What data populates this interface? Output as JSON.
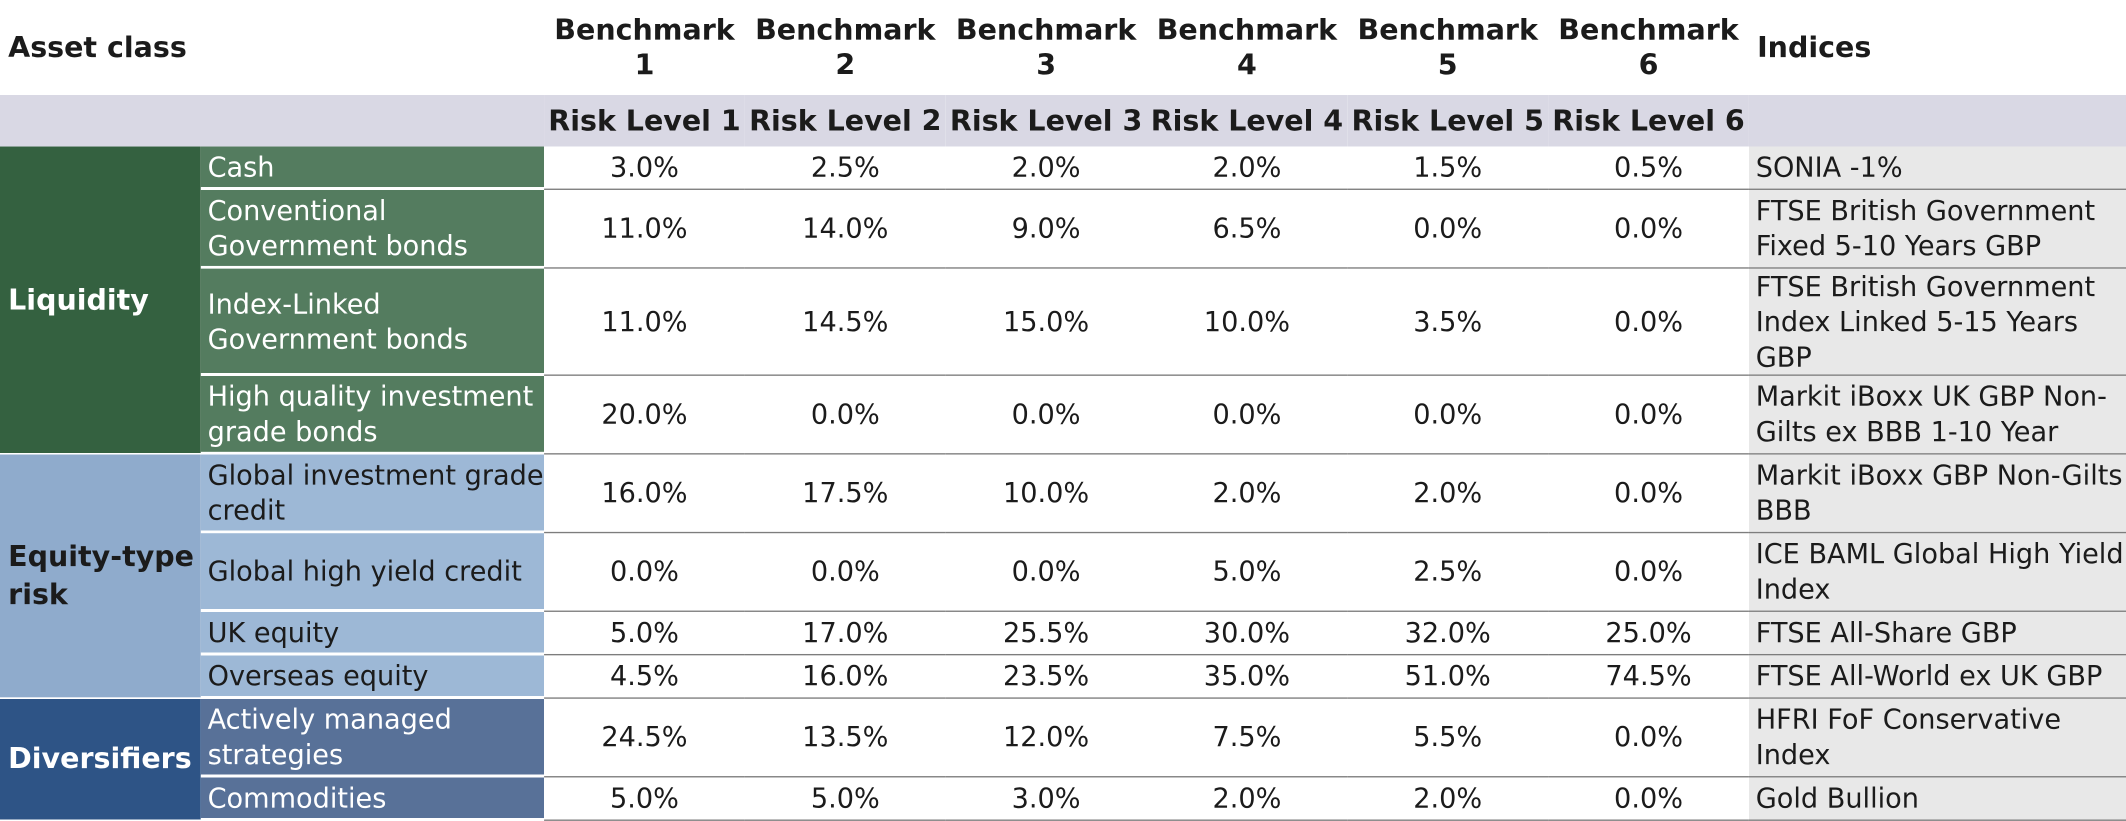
{
  "header": {
    "asset_class": "Asset class",
    "indices": "Indices",
    "benchmarks": [
      {
        "line1": "Benchmark",
        "line2": "1"
      },
      {
        "line1": "Benchmark",
        "line2": "2"
      },
      {
        "line1": "Benchmark",
        "line2": "3"
      },
      {
        "line1": "Benchmark",
        "line2": "4"
      },
      {
        "line1": "Benchmark",
        "line2": "5"
      },
      {
        "line1": "Benchmark",
        "line2": "6"
      }
    ],
    "risk_levels": [
      "Risk Level 1",
      "Risk Level 2",
      "Risk Level 3",
      "Risk Level 4",
      "Risk Level 5",
      "Risk Level 6"
    ]
  },
  "colors": {
    "liquidity": "#346140",
    "liquidity_sub": "#547c5f",
    "equity": "#8fabcc",
    "equity_sub": "#9db8d6",
    "diversifiers": "#2e5486",
    "diversifiers_sub": "#587198",
    "risk_row": "#d9d8e4",
    "indices_bg": "#e8e8e8"
  },
  "categories": [
    {
      "label": "Liquidity",
      "rows": [
        {
          "asset": "Cash",
          "values": [
            "3.0%",
            "2.5%",
            "2.0%",
            "2.0%",
            "1.5%",
            "0.5%"
          ],
          "index": "SONIA -1%"
        },
        {
          "asset": "Conventional Government bonds",
          "values": [
            "11.0%",
            "14.0%",
            "9.0%",
            "6.5%",
            "0.0%",
            "0.0%"
          ],
          "index": "FTSE British Government Fixed 5-10 Years GBP"
        },
        {
          "asset": "Index-Linked Government bonds",
          "values": [
            "11.0%",
            "14.5%",
            "15.0%",
            "10.0%",
            "3.5%",
            "0.0%"
          ],
          "index": "FTSE British Government Index Linked 5-15 Years GBP"
        },
        {
          "asset": "High quality investment grade bonds",
          "values": [
            "20.0%",
            "0.0%",
            "0.0%",
            "0.0%",
            "0.0%",
            "0.0%"
          ],
          "index": "Markit iBoxx UK GBP Non-Gilts ex BBB 1-10 Year"
        }
      ]
    },
    {
      "label": "Equity-type risk",
      "rows": [
        {
          "asset": "Global investment grade credit",
          "values": [
            "16.0%",
            "17.5%",
            "10.0%",
            "2.0%",
            "2.0%",
            "0.0%"
          ],
          "index": "Markit iBoxx GBP Non-Gilts BBB"
        },
        {
          "asset": "Global high yield credit",
          "values": [
            "0.0%",
            "0.0%",
            "0.0%",
            "5.0%",
            "2.5%",
            "0.0%"
          ],
          "index": "ICE BAML Global High Yield Index"
        },
        {
          "asset": "UK equity",
          "values": [
            "5.0%",
            "17.0%",
            "25.5%",
            "30.0%",
            "32.0%",
            "25.0%"
          ],
          "index": "FTSE All-Share GBP"
        },
        {
          "asset": "Overseas equity",
          "values": [
            "4.5%",
            "16.0%",
            "23.5%",
            "35.0%",
            "51.0%",
            "74.5%"
          ],
          "index": "FTSE All-World ex UK GBP"
        }
      ]
    },
    {
      "label": "Diversifiers",
      "rows": [
        {
          "asset": "Actively managed strategies",
          "values": [
            "24.5%",
            "13.5%",
            "12.0%",
            "7.5%",
            "5.5%",
            "0.0%"
          ],
          "index": "HFRI FoF Conservative Index"
        },
        {
          "asset": "Commodities",
          "values": [
            "5.0%",
            "5.0%",
            "3.0%",
            "2.0%",
            "2.0%",
            "0.0%"
          ],
          "index": "Gold Bullion"
        }
      ]
    }
  ]
}
